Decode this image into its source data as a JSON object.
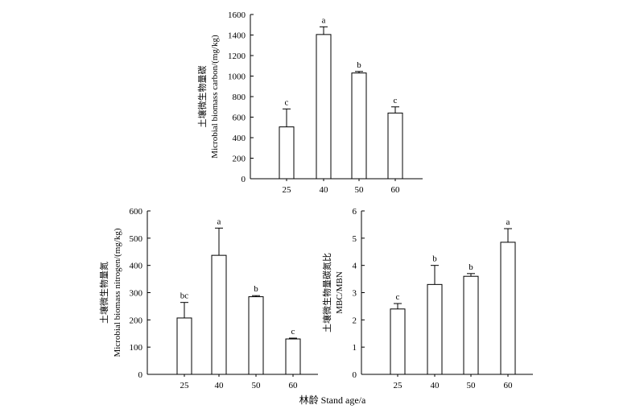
{
  "xlabel": "林龄 Stand age/a",
  "chart_data": [
    {
      "type": "bar",
      "categories": [
        "25",
        "40",
        "50",
        "60"
      ],
      "values": [
        505,
        1405,
        1030,
        640
      ],
      "errors": [
        175,
        75,
        15,
        60
      ],
      "significance": [
        "c",
        "a",
        "b",
        "c"
      ],
      "ylabel_cn": "土壤微生物量碳",
      "ylabel_en": "Microbial biomass carbon/(mg/kg)",
      "ylim": [
        0,
        1600
      ],
      "yticks": [
        0,
        200,
        400,
        600,
        800,
        1000,
        1200,
        1400,
        1600
      ]
    },
    {
      "type": "bar",
      "categories": [
        "25",
        "40",
        "50",
        "60"
      ],
      "values": [
        207,
        437,
        285,
        130
      ],
      "errors": [
        57,
        100,
        4,
        3
      ],
      "significance": [
        "bc",
        "a",
        "b",
        "c"
      ],
      "ylabel_cn": "土壤微生物量氮",
      "ylabel_en": "Microbial biomass nitrogen/(mg/kg)",
      "ylim": [
        0,
        600
      ],
      "yticks": [
        0,
        100,
        200,
        300,
        400,
        500,
        600
      ]
    },
    {
      "type": "bar",
      "categories": [
        "25",
        "40",
        "50",
        "60"
      ],
      "values": [
        2.4,
        3.3,
        3.6,
        4.85
      ],
      "errors": [
        0.2,
        0.7,
        0.1,
        0.5
      ],
      "significance": [
        "c",
        "b",
        "b",
        "a"
      ],
      "ylabel_cn": "土壤微生物量碳氮比",
      "ylabel_en": "MBC/MBN",
      "ylim": [
        0,
        6
      ],
      "yticks": [
        0,
        1,
        2,
        3,
        4,
        5,
        6
      ]
    }
  ]
}
